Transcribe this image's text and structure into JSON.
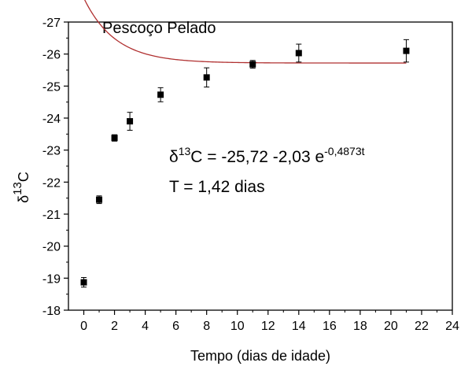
{
  "chart_data": {
    "type": "scatter",
    "title": "Pescoço Pelado",
    "xlabel": "Tempo (dias de idade)",
    "ylabel": {
      "base": "δ",
      "sup": "13",
      "rest": "C"
    },
    "xlim": [
      -1,
      24
    ],
    "ylim": [
      -18,
      -27
    ],
    "y_axis_reversed": true,
    "x_ticks": [
      0,
      2,
      4,
      6,
      8,
      10,
      12,
      14,
      16,
      18,
      20,
      22,
      24
    ],
    "y_ticks": [
      -18,
      -19,
      -20,
      -21,
      -22,
      -23,
      -24,
      -25,
      -26,
      -27
    ],
    "grid": false,
    "legend": "none",
    "points": [
      {
        "x": 0,
        "y": -18.87,
        "err": 0.15
      },
      {
        "x": 1,
        "y": -21.45,
        "err": 0.12
      },
      {
        "x": 2,
        "y": -23.38,
        "err": 0.1
      },
      {
        "x": 3,
        "y": -23.9,
        "err": 0.28
      },
      {
        "x": 5,
        "y": -24.73,
        "err": 0.22
      },
      {
        "x": 8,
        "y": -25.27,
        "err": 0.3
      },
      {
        "x": 11,
        "y": -25.68,
        "err": 0.12
      },
      {
        "x": 14,
        "y": -26.03,
        "err": 0.28
      },
      {
        "x": 21,
        "y": -26.1,
        "err": 0.35
      }
    ],
    "fit": {
      "a": -25.72,
      "b": -2.03,
      "k": 0.4873,
      "x_range": [
        0,
        21
      ]
    },
    "equation": {
      "base": "δ",
      "sup1": "13",
      "mid": "C = -25,72 -2,03 e",
      "sup2": "-0,4873t"
    },
    "t_label": "T = 1,42 dias",
    "colors": {
      "fit": "#b03030",
      "points": "#000000",
      "axis": "#000000"
    }
  }
}
